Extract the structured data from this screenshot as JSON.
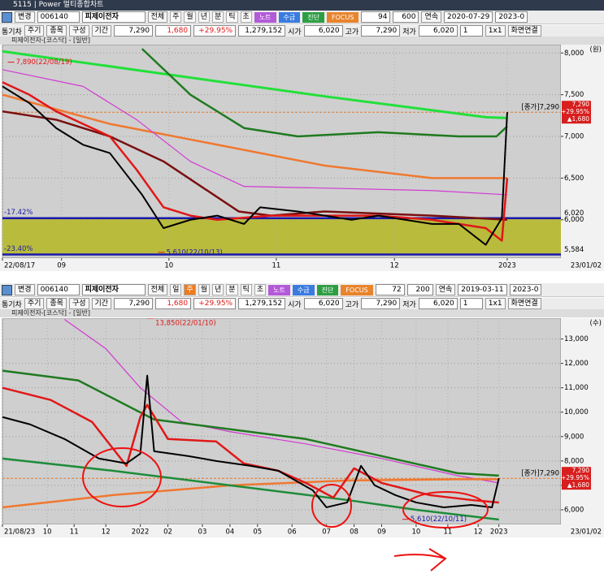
{
  "app_title": "5115 | Power 멀티종합차트",
  "panels": [
    {
      "change_btn": "변경",
      "code": "006140",
      "name": "피제이전자",
      "all": "전체",
      "periods": [
        "주",
        "월",
        "년",
        "분",
        "틱",
        "초"
      ],
      "buttons": [
        {
          "text": "노트",
          "color": "#b35ad8"
        },
        {
          "text": "수급",
          "color": "#3a7be0"
        },
        {
          "text": "진단",
          "color": "#2e9e44"
        },
        {
          "text": "FOCUS",
          "color": "#e8842c"
        }
      ],
      "count": "94",
      "max": "600",
      "mode": "연속",
      "start": "2020-07-29",
      "end": "2023-0",
      "row2": [
        "통기차",
        "주기",
        "종목",
        "구성",
        "기간"
      ],
      "price": "7,290",
      "change": "1,680",
      "rate": "+29.95%",
      "volume": "1,279,152",
      "ohl": [
        {
          "label": "시가",
          "value": "6,020"
        },
        {
          "label": "고가",
          "value": "7,290"
        },
        {
          "label": "저가",
          "value": "6,020"
        }
      ],
      "layout_count": "1",
      "layout": "1x1",
      "link": "화면연결",
      "chart": {
        "type": "line",
        "header": "피제이전자-[코스닥] - [일반]",
        "unit": "(원)",
        "end_date": "23/01/02",
        "xlim": [
          0,
          104
        ],
        "ylim": [
          5540,
          8100
        ],
        "grid": true,
        "xticks": [
          {
            "value": 0,
            "label": "22/08/17"
          },
          {
            "value": 11,
            "label": "09"
          },
          {
            "value": 31,
            "label": "10"
          },
          {
            "value": 51,
            "label": "11"
          },
          {
            "value": 73,
            "label": "12"
          },
          {
            "value": 94,
            "label": "2023"
          }
        ],
        "yticks": [
          {
            "value": 6000,
            "label": "6,000"
          },
          {
            "value": 6500,
            "label": "6,500"
          },
          {
            "value": 7000,
            "label": "7,000"
          },
          {
            "value": 7500,
            "label": "7,500"
          },
          {
            "value": 8000,
            "label": "8,000"
          }
        ],
        "band_color": "#b9bb3c",
        "hlines": [
          {
            "value": 6020,
            "label": "6,020",
            "left_label": "-17.42%",
            "color": "#1a1aa8"
          },
          {
            "value": 5584,
            "label": "5,584",
            "left_label": "-23.40%",
            "color": "#1a1aa8"
          }
        ],
        "series": [
          {
            "color": "#22e03a",
            "width": 3,
            "x": [
              0,
              30,
              60,
              90,
              94
            ],
            "values": [
              8020,
              7750,
              7480,
              7230,
              7220
            ]
          },
          {
            "color": "#1f7a1f",
            "width": 2.5,
            "x": [
              26,
              35,
              45,
              55,
              70,
              85,
              92,
              94
            ],
            "values": [
              8050,
              7500,
              7100,
              7000,
              7050,
              7000,
              7000,
              7120
            ]
          },
          {
            "color": "#f07830",
            "width": 2.5,
            "x": [
              0,
              20,
              40,
              60,
              80,
              94
            ],
            "values": [
              7500,
              7150,
              6900,
              6650,
              6500,
              6500
            ]
          },
          {
            "color": "#d23ad2",
            "width": 1.2,
            "x": [
              0,
              15,
              25,
              35,
              45,
              60,
              80,
              94
            ],
            "values": [
              7800,
              7600,
              7200,
              6700,
              6400,
              6380,
              6350,
              6300
            ]
          },
          {
            "color": "#7a1010",
            "width": 2.5,
            "x": [
              0,
              10,
              20,
              30,
              44,
              50,
              60,
              80,
              94
            ],
            "values": [
              7300,
              7200,
              7000,
              6700,
              6100,
              6050,
              6100,
              6050,
              6000
            ]
          },
          {
            "color": "#e01818",
            "width": 2.5,
            "x": [
              0,
              5,
              10,
              15,
              20,
              25,
              30,
              35,
              40,
              50,
              60,
              70,
              80,
              90,
              93,
              94
            ],
            "values": [
              7650,
              7500,
              7300,
              7150,
              7000,
              6600,
              6150,
              6050,
              6000,
              6050,
              6050,
              6050,
              6000,
              5900,
              5750,
              6500
            ]
          },
          {
            "color": "#000000",
            "width": 2,
            "x": [
              0,
              5,
              10,
              15,
              20,
              26,
              30,
              35,
              40,
              45,
              48,
              55,
              60,
              65,
              70,
              75,
              80,
              85,
              90,
              93,
              94
            ],
            "values": [
              7600,
              7400,
              7100,
              6900,
              6800,
              6300,
              5900,
              6000,
              6050,
              5950,
              6150,
              6100,
              6050,
              6000,
              6050,
              6000,
              5950,
              5950,
              5700,
              6020,
              7290
            ]
          }
        ],
        "annotations": [
          {
            "text": "7,890(22/08/19)",
            "x": 1,
            "value": 7890
          },
          {
            "text": "5,610(22/10/13)",
            "x": 29,
            "value": 5610
          }
        ],
        "last": {
          "label": "[종가]7,290",
          "value": 7290,
          "price": "7,290",
          "rate": "+29.95%",
          "change": "▲1,680"
        }
      }
    },
    {
      "change_btn": "변경",
      "code": "006140",
      "name": "피제이전자",
      "all": "전체",
      "periods": [
        "일",
        "주",
        "월",
        "년",
        "분",
        "틱",
        "초"
      ],
      "selected_period": "주",
      "buttons": [
        {
          "text": "노트",
          "color": "#b35ad8"
        },
        {
          "text": "수급",
          "color": "#3a7be0"
        },
        {
          "text": "진단",
          "color": "#2e9e44"
        },
        {
          "text": "FOCUS",
          "color": "#e8842c"
        }
      ],
      "count": "72",
      "max": "200",
      "mode": "연속",
      "start": "2019-03-11",
      "end": "2023-0",
      "row2": [
        "통기차",
        "주기",
        "종목",
        "구성",
        "기간"
      ],
      "price": "7,290",
      "change": "1,680",
      "rate": "+29.95%",
      "volume": "1,279,152",
      "ohl": [
        {
          "label": "시가",
          "value": "6,020"
        },
        {
          "label": "고가",
          "value": "7,290"
        },
        {
          "label": "저가",
          "value": "6,020"
        }
      ],
      "layout_count": "1",
      "layout": "1x1",
      "link": "화면연결",
      "chart": {
        "type": "line",
        "header": "피제이전자-[코스닥] - [일반]",
        "unit": "(수)",
        "end_date": "23/01/02",
        "xlim": [
          0,
          81
        ],
        "ylim": [
          5400,
          13850
        ],
        "grid": true,
        "xticks": [
          {
            "value": 0,
            "label": "21/08/23"
          },
          {
            "value": 6.5,
            "label": "10"
          },
          {
            "value": 10.4,
            "label": "11"
          },
          {
            "value": 15,
            "label": "12"
          },
          {
            "value": 20,
            "label": "2022"
          },
          {
            "value": 24,
            "label": "02"
          },
          {
            "value": 29,
            "label": "03"
          },
          {
            "value": 33,
            "label": "04"
          },
          {
            "value": 37,
            "label": "05"
          },
          {
            "value": 42,
            "label": "06"
          },
          {
            "value": 47,
            "label": "07"
          },
          {
            "value": 51,
            "label": "08"
          },
          {
            "value": 55,
            "label": "09"
          },
          {
            "value": 60,
            "label": "10"
          },
          {
            "value": 64.6,
            "label": "11"
          },
          {
            "value": 69,
            "label": "12"
          },
          {
            "value": 72,
            "label": "2023"
          }
        ],
        "yticks": [
          {
            "value": 6000,
            "label": "6,000"
          },
          {
            "value": 7000,
            "label": "7,000"
          },
          {
            "value": 8000,
            "label": "8,000"
          },
          {
            "value": 9000,
            "label": "9,000"
          },
          {
            "value": 10000,
            "label": "10,000"
          },
          {
            "value": 11000,
            "label": "11,000"
          },
          {
            "value": 12000,
            "label": "12,000"
          },
          {
            "value": 13000,
            "label": "13,000"
          }
        ],
        "series": [
          {
            "color": "#d23ad2",
            "width": 1.2,
            "x": [
              9,
              15,
              20,
              26,
              33,
              44,
              55,
              66,
              72
            ],
            "values": [
              13800,
              12600,
              11000,
              9600,
              9200,
              8700,
              8100,
              7400,
              7100
            ]
          },
          {
            "color": "#1f7a1f",
            "width": 2.5,
            "x": [
              0,
              11,
              22,
              33,
              44,
              55,
              66,
              72
            ],
            "values": [
              11700,
              11300,
              9700,
              9300,
              8900,
              8200,
              7500,
              7400
            ]
          },
          {
            "color": "#f07830",
            "width": 2.5,
            "x": [
              0,
              16,
              33,
              50,
              66,
              72
            ],
            "values": [
              6100,
              6600,
              7000,
              7200,
              7250,
              7250
            ]
          },
          {
            "color": "#1e8c3a",
            "width": 2.5,
            "x": [
              0,
              16,
              33,
              50,
              60,
              72
            ],
            "values": [
              8100,
              7600,
              7000,
              6400,
              6000,
              5600
            ]
          },
          {
            "color": "#e01818",
            "width": 2.5,
            "x": [
              0,
              7,
              13,
              18,
              20,
              21,
              24,
              31,
              35,
              40,
              44,
              48,
              51,
              55,
              62,
              68,
              72
            ],
            "values": [
              11000,
              10500,
              9600,
              7800,
              9800,
              10300,
              8900,
              8800,
              7900,
              7600,
              7100,
              6500,
              7700,
              7100,
              6600,
              6400,
              6300
            ]
          },
          {
            "color": "#000000",
            "width": 2,
            "x": [
              0,
              4,
              9,
              14,
              18,
              20,
              21,
              22,
              27,
              31,
              36,
              40,
              45,
              47,
              50,
              52,
              54,
              57,
              60,
              64,
              68,
              71,
              72
            ],
            "values": [
              9800,
              9500,
              8900,
              8100,
              7900,
              8300,
              11500,
              8400,
              8200,
              8000,
              7800,
              7600,
              6800,
              6100,
              6300,
              7800,
              7000,
              6600,
              6300,
              6100,
              6200,
              6100,
              7290
            ]
          }
        ],
        "annotations": [
          {
            "text": "13,850(22/01/10)",
            "x": 21,
            "value": 13850
          },
          {
            "text": "5,610(22/10/11)",
            "x": 58,
            "value": 5610
          }
        ],
        "last": {
          "label": "[종가]7,290",
          "value": 7290,
          "price": "7,290",
          "rate": "+29.95%",
          "change": "▲1,680"
        }
      }
    }
  ]
}
